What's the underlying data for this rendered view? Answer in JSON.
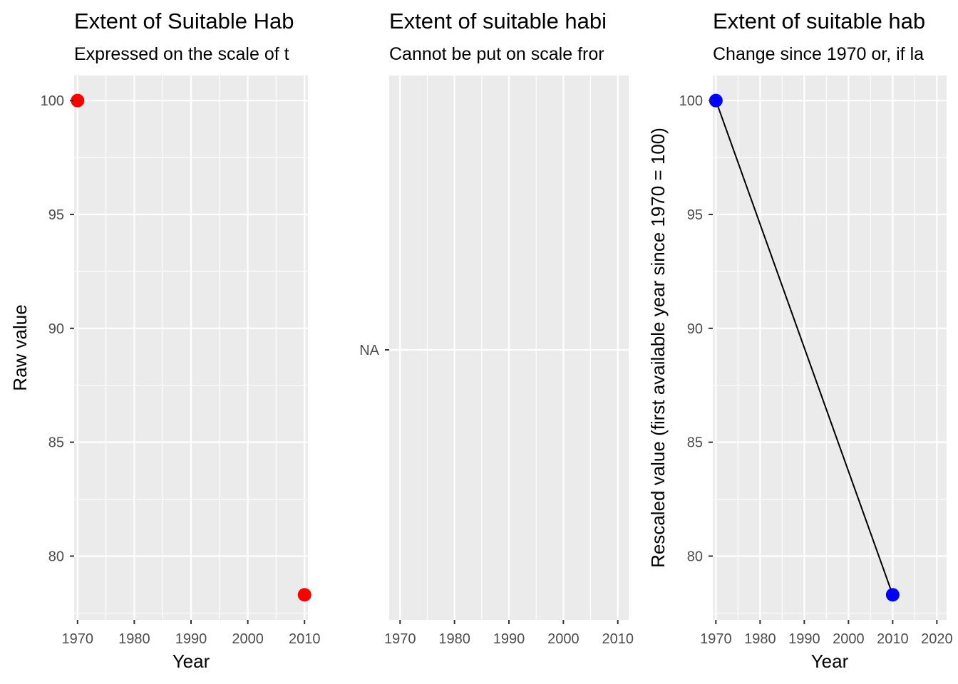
{
  "chart_data": [
    {
      "type": "scatter",
      "title": "Extent of Suitable Hab",
      "subtitle": "Expressed on the scale of t",
      "xlabel": "Year",
      "ylabel": "Raw value",
      "x_ticks": [
        "1970",
        "1980",
        "1990",
        "2000",
        "2010"
      ],
      "y_ticks": [
        "80",
        "85",
        "90",
        "95",
        "100"
      ],
      "xlim": [
        1969.4,
        2010.6
      ],
      "ylim": [
        77.2,
        101.1
      ],
      "grid": true,
      "point_color": "#ff0000",
      "series": [
        {
          "x": [
            1970,
            2010
          ],
          "y": [
            100,
            78.3
          ]
        }
      ]
    },
    {
      "type": "scatter",
      "title": "Extent of suitable habi",
      "subtitle": "Cannot be put on scale fror",
      "xlabel": "",
      "ylabel": "",
      "x_ticks": [
        "1970",
        "1980",
        "1990",
        "2000",
        "2010"
      ],
      "y_ticks": [
        "NA"
      ],
      "xlim": [
        1968,
        2012
      ],
      "grid": true,
      "series": []
    },
    {
      "type": "line",
      "title": "Extent of suitable hab",
      "subtitle": "Change since 1970 or, if la",
      "xlabel": "Year",
      "ylabel": "Rescaled value (first available year since 1970 = 100)",
      "x_ticks": [
        "1970",
        "1980",
        "1990",
        "2000",
        "2010",
        "2020"
      ],
      "y_ticks": [
        "80",
        "85",
        "90",
        "95",
        "100"
      ],
      "xlim": [
        1969.3,
        2022.2
      ],
      "ylim": [
        77.2,
        101.1
      ],
      "grid": true,
      "point_color": "#0000ff",
      "line_color": "#000000",
      "series": [
        {
          "x": [
            1970,
            2010
          ],
          "y": [
            100,
            78.3
          ]
        }
      ]
    }
  ]
}
